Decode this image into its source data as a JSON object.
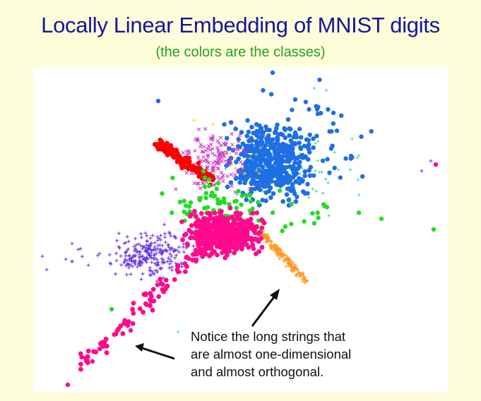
{
  "slide": {
    "title": "Locally Linear Embedding of MNIST digits",
    "subtitle": "(the colors are the classes)",
    "annotation": [
      "Notice the long strings that",
      "are almost one-dimensional",
      "and almost orthogonal."
    ]
  },
  "colors": {
    "title": "#16169a",
    "subtitle": "#24a024",
    "background": "#fdfdd9",
    "classes": [
      "#ff0000",
      "#1e6ee6",
      "#ff0a8c",
      "#6633dd",
      "#ff9922",
      "#22dd22",
      "#cc33cc",
      "#33ddaa",
      "#dddd00"
    ]
  },
  "icons": [
    "arrow-icon",
    "arrow-icon"
  ]
}
